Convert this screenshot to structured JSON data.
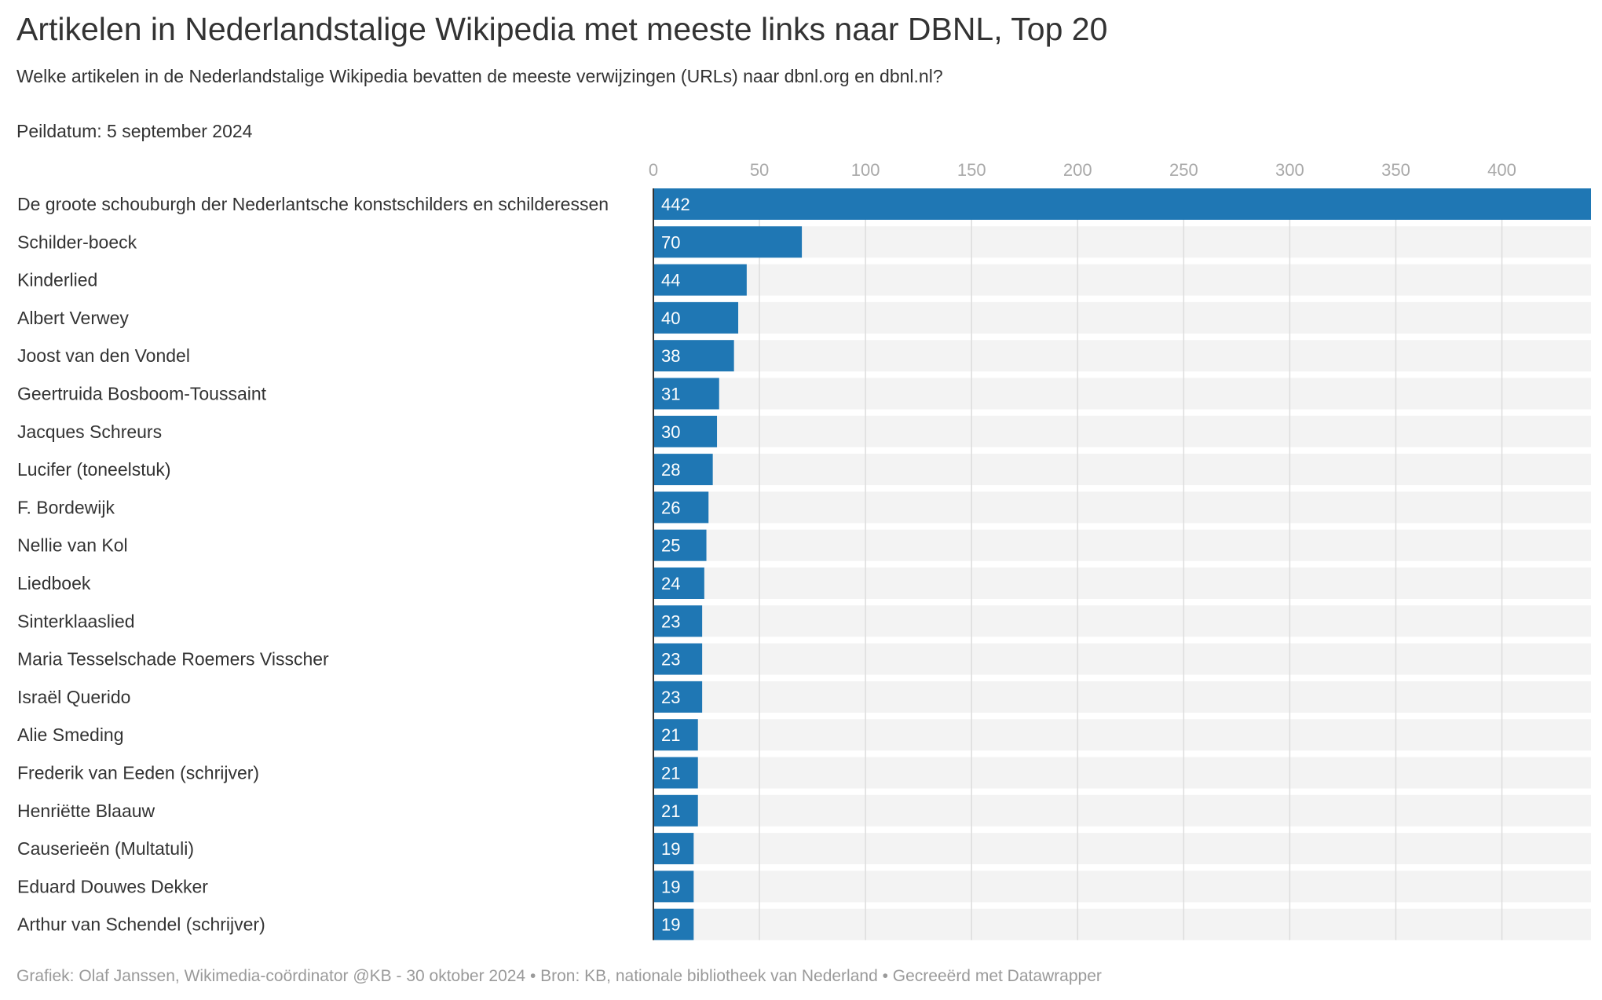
{
  "chart_data": {
    "type": "bar",
    "orientation": "horizontal",
    "title": "Artikelen in Nederlandstalige Wikipedia met meeste links naar DBNL, Top 20",
    "subtitle": "Welke artikelen in de Nederlandstalige Wikipedia bevatten de meeste verwijzingen (URLs) naar dbnl.org en dbnl.nl?",
    "note": "Peildatum: 5 september 2024",
    "footer": "Grafiek: Olaf Janssen, Wikimedia-coördinator @KB - 30 oktober 2024 • Bron: KB, nationale bibliotheek van Nederland • Gecreeërd met Datawrapper",
    "categories": [
      "De groote schouburgh der Nederlantsche konstschilders en schilderessen",
      "Schilder-boeck",
      "Kinderlied",
      "Albert Verwey",
      "Joost van den Vondel",
      "Geertruida Bosboom-Toussaint",
      "Jacques Schreurs",
      "Lucifer (toneelstuk)",
      "F. Bordewijk",
      "Nellie van Kol",
      "Liedboek",
      "Sinterklaaslied",
      "Maria Tesselschade Roemers Visscher",
      "Israël Querido",
      "Alie Smeding",
      "Frederik van Eeden (schrijver)",
      "Henriëtte Blaauw",
      "Causerieën (Multatuli)",
      "Eduard Douwes Dekker",
      "Arthur van Schendel (schrijver)"
    ],
    "values": [
      442,
      70,
      44,
      40,
      38,
      31,
      30,
      28,
      26,
      25,
      24,
      23,
      23,
      23,
      21,
      21,
      21,
      19,
      19,
      19
    ],
    "value_labels": [
      "442",
      "70",
      "44",
      "40",
      "38",
      "31",
      "30",
      "28",
      "26",
      "25",
      "24",
      "23",
      "23",
      "23",
      "21",
      "21",
      "21",
      "19",
      "19",
      "19"
    ],
    "xlim": [
      0,
      442
    ],
    "xticks": [
      0,
      50,
      100,
      150,
      200,
      250,
      300,
      350,
      400
    ],
    "xtick_labels": [
      "0",
      "50",
      "100",
      "150",
      "200",
      "250",
      "300",
      "350",
      "400"
    ],
    "axis_position": "top",
    "grid": true,
    "legend": "none",
    "colors": {
      "bar": "#1f77b4",
      "track": "#f3f3f3",
      "grid": "#dddddd",
      "axis": "#333333"
    }
  }
}
